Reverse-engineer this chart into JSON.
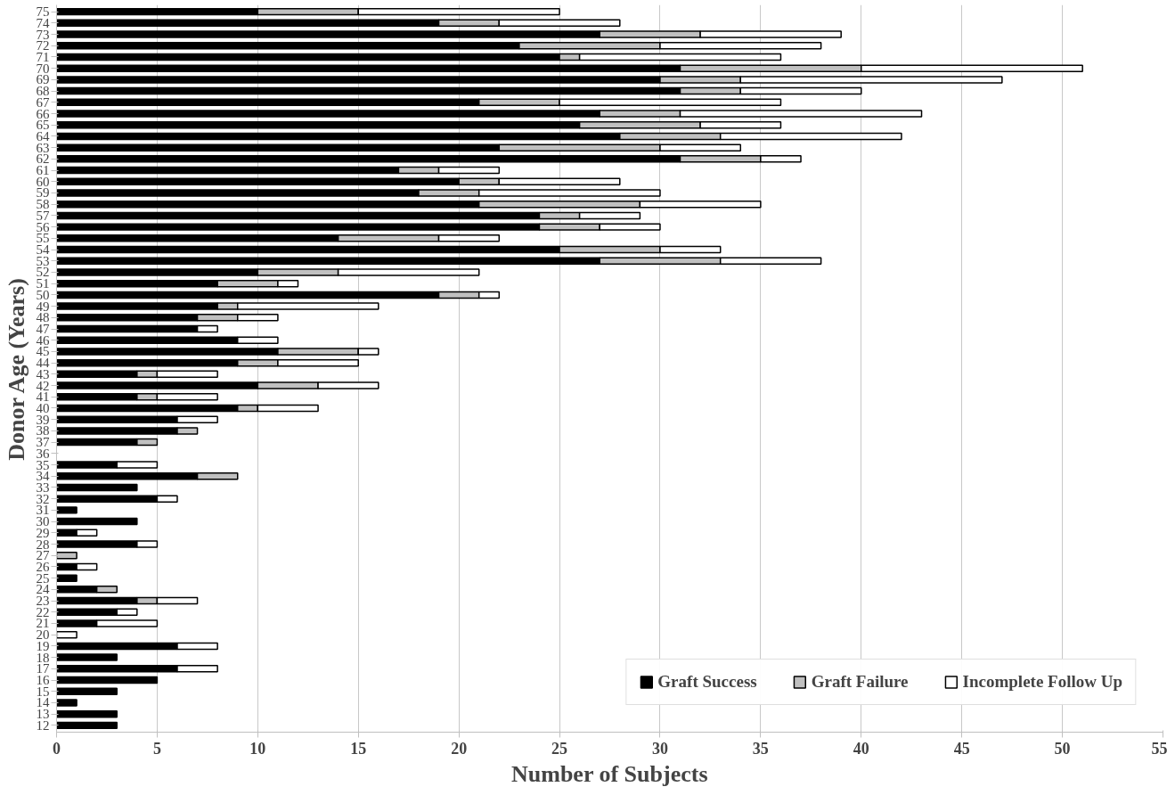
{
  "chart_data": {
    "type": "bar",
    "orientation": "horizontal",
    "stacked": true,
    "xlabel": "Number of Subjects",
    "ylabel": "Donor Age (Years)",
    "categories": [
      "75",
      "74",
      "73",
      "72",
      "71",
      "70",
      "69",
      "68",
      "67",
      "66",
      "65",
      "64",
      "63",
      "62",
      "61",
      "60",
      "59",
      "58",
      "57",
      "56",
      "55",
      "54",
      "53",
      "52",
      "51",
      "50",
      "49",
      "48",
      "47",
      "46",
      "45",
      "44",
      "43",
      "42",
      "41",
      "40",
      "39",
      "38",
      "37",
      "36",
      "35",
      "34",
      "33",
      "32",
      "31",
      "30",
      "29",
      "28",
      "27",
      "26",
      "25",
      "24",
      "23",
      "22",
      "21",
      "20",
      "19",
      "18",
      "17",
      "16",
      "15",
      "14",
      "13",
      "12"
    ],
    "series": [
      {
        "name": "Graft Success",
        "color": "#000000",
        "values": [
          10,
          19,
          27,
          23,
          25,
          31,
          30,
          31,
          21,
          27,
          26,
          28,
          22,
          31,
          17,
          20,
          18,
          21,
          24,
          24,
          14,
          25,
          27,
          10,
          8,
          19,
          8,
          7,
          7,
          9,
          11,
          9,
          4,
          10,
          4,
          9,
          6,
          6,
          4,
          0,
          3,
          7,
          4,
          5,
          1,
          4,
          1,
          4,
          0,
          1,
          1,
          2,
          4,
          3,
          2,
          0,
          6,
          3,
          6,
          5,
          3,
          1,
          3,
          3
        ]
      },
      {
        "name": "Graft Failure",
        "color": "#c0c0c0",
        "values": [
          5,
          3,
          5,
          7,
          1,
          9,
          4,
          3,
          4,
          4,
          6,
          5,
          8,
          4,
          2,
          2,
          3,
          8,
          2,
          3,
          5,
          5,
          6,
          4,
          3,
          2,
          1,
          2,
          0,
          0,
          4,
          2,
          1,
          3,
          1,
          1,
          0,
          1,
          1,
          0,
          0,
          2,
          0,
          0,
          0,
          0,
          0,
          0,
          1,
          0,
          0,
          1,
          1,
          0,
          0,
          0,
          0,
          0,
          0,
          0,
          0,
          0,
          0,
          0
        ]
      },
      {
        "name": "Incomplete Follow Up",
        "color": "#ffffff",
        "values": [
          10,
          6,
          7,
          8,
          10,
          11,
          13,
          6,
          11,
          12,
          4,
          9,
          4,
          2,
          3,
          6,
          9,
          6,
          3,
          3,
          3,
          3,
          5,
          7,
          1,
          1,
          7,
          2,
          1,
          2,
          1,
          4,
          3,
          3,
          3,
          3,
          2,
          0,
          0,
          0,
          2,
          0,
          0,
          1,
          0,
          0,
          1,
          1,
          0,
          1,
          0,
          0,
          2,
          1,
          3,
          1,
          2,
          0,
          2,
          0,
          0,
          0,
          0,
          0
        ]
      }
    ],
    "xlim": [
      0,
      55
    ],
    "xticks": [
      0,
      5,
      10,
      15,
      20,
      25,
      30,
      35,
      40,
      45,
      50,
      55
    ],
    "grid": "x",
    "legend": "bottom right"
  }
}
